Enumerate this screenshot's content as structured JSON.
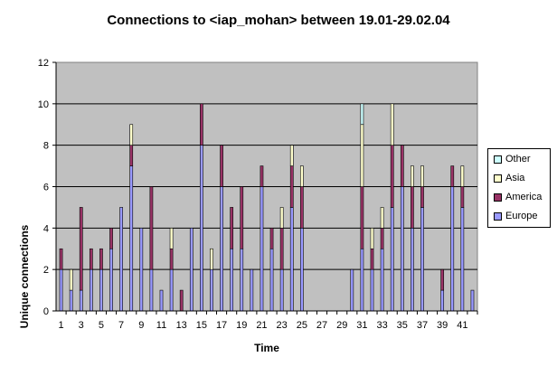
{
  "chart_data": {
    "type": "bar",
    "stacked": true,
    "title": "Connections to <iap_mohan> between 19.01-29.02.04",
    "xlabel": "Time",
    "ylabel": "Unique connections",
    "ylim": [
      0,
      12
    ],
    "yticks": [
      0,
      2,
      4,
      6,
      8,
      10,
      12
    ],
    "grid": true,
    "legend_position": "right",
    "background": "#C0C0C0",
    "x": [
      1,
      2,
      3,
      4,
      5,
      6,
      7,
      8,
      9,
      10,
      11,
      12,
      13,
      14,
      15,
      16,
      17,
      18,
      19,
      20,
      21,
      22,
      23,
      24,
      25,
      26,
      27,
      28,
      29,
      30,
      31,
      32,
      33,
      34,
      35,
      36,
      37,
      38,
      39,
      40,
      41,
      42
    ],
    "xtick_labels": [
      "1",
      "",
      "3",
      "",
      "5",
      "",
      "7",
      "",
      "9",
      "",
      "11",
      "",
      "13",
      "",
      "15",
      "",
      "17",
      "",
      "19",
      "",
      "21",
      "",
      "23",
      "",
      "25",
      "",
      "27",
      "",
      "29",
      "",
      "31",
      "",
      "33",
      "",
      "35",
      "",
      "37",
      "",
      "39",
      "",
      "41",
      ""
    ],
    "series": [
      {
        "name": "Europe",
        "color": "#9999FF",
        "values": [
          2,
          1,
          1,
          2,
          2,
          3,
          5,
          7,
          4,
          2,
          1,
          2,
          0,
          4,
          8,
          2,
          6,
          3,
          3,
          2,
          6,
          3,
          2,
          5,
          4,
          0,
          0,
          0,
          0,
          2,
          3,
          2,
          3,
          5,
          6,
          4,
          5,
          0,
          1,
          6,
          5,
          1
        ]
      },
      {
        "name": "America",
        "color": "#993366",
        "values": [
          1,
          0,
          4,
          1,
          1,
          1,
          0,
          1,
          0,
          4,
          0,
          1,
          1,
          0,
          2,
          0,
          2,
          2,
          3,
          0,
          1,
          1,
          2,
          2,
          2,
          0,
          0,
          0,
          0,
          0,
          3,
          1,
          1,
          3,
          2,
          2,
          1,
          0,
          1,
          1,
          1,
          0
        ]
      },
      {
        "name": "Asia",
        "color": "#FFFFCC",
        "values": [
          0,
          1,
          0,
          0,
          0,
          0,
          0,
          1,
          0,
          0,
          0,
          1,
          0,
          0,
          0,
          1,
          0,
          0,
          0,
          0,
          0,
          0,
          1,
          1,
          1,
          0,
          0,
          0,
          0,
          0,
          3,
          1,
          1,
          2,
          0,
          1,
          1,
          0,
          0,
          0,
          1,
          0
        ]
      },
      {
        "name": "Other",
        "color": "#CCFFFF",
        "values": [
          0,
          0,
          0,
          0,
          0,
          0,
          0,
          0,
          0,
          0,
          0,
          0,
          0,
          0,
          0,
          0,
          0,
          0,
          0,
          0,
          0,
          0,
          0,
          0,
          0,
          0,
          0,
          0,
          0,
          0,
          1,
          0,
          0,
          0,
          0,
          0,
          0,
          0,
          0,
          0,
          0,
          0
        ]
      }
    ]
  }
}
